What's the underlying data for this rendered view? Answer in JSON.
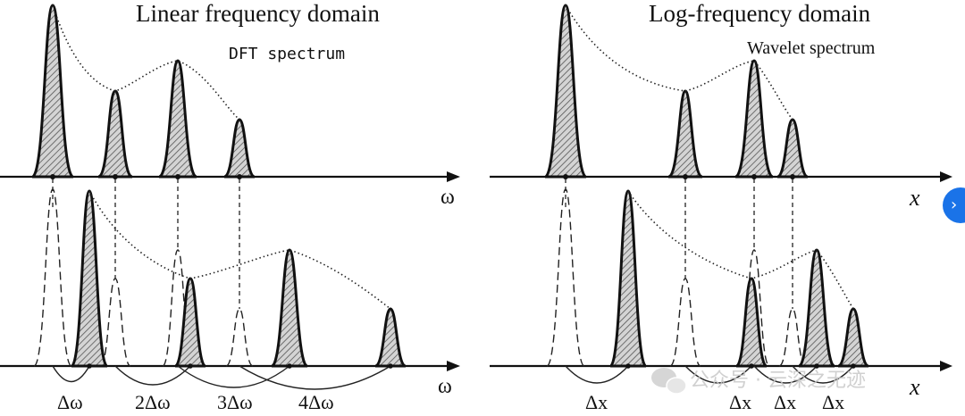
{
  "titles": {
    "left": "Linear frequency domain",
    "left_sub": "DFT spectrum",
    "right": "Log-frequency domain",
    "right_sub": "Wavelet spectrum"
  },
  "axis_labels": {
    "left_top": "ω",
    "left_bottom": "ω",
    "right_top": "x",
    "right_bottom": "x"
  },
  "delta_labels": {
    "left": [
      "Δω",
      "2Δω",
      "3Δω",
      "4Δω"
    ],
    "right": [
      "Δx",
      "Δx",
      "Δx",
      "Δx"
    ]
  },
  "watermark": "公众号 · 云深之无迹",
  "nav_icon": "chevron-right-icon"
}
